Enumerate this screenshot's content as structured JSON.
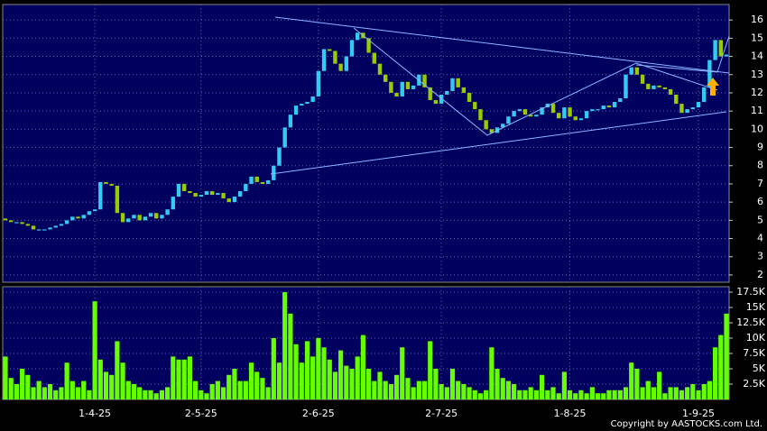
{
  "chart_data": {
    "type": "candlestick",
    "copyright": "Copyright by AASTOCKS.com Ltd.",
    "categories": [
      null,
      null,
      null,
      null,
      null,
      null,
      null,
      null,
      null,
      null,
      null,
      null,
      null,
      null,
      null,
      null,
      "1-4-25",
      null,
      null,
      null,
      null,
      null,
      null,
      null,
      null,
      null,
      null,
      null,
      null,
      null,
      null,
      null,
      null,
      null,
      null,
      "2-5-25",
      null,
      null,
      null,
      null,
      null,
      null,
      null,
      null,
      null,
      null,
      null,
      null,
      null,
      null,
      null,
      null,
      null,
      null,
      null,
      null,
      "2-6-25",
      null,
      null,
      null,
      null,
      null,
      null,
      null,
      null,
      null,
      null,
      null,
      null,
      null,
      null,
      null,
      null,
      null,
      null,
      null,
      null,
      null,
      "2-7-25",
      null,
      null,
      null,
      null,
      null,
      null,
      null,
      null,
      null,
      null,
      null,
      null,
      null,
      null,
      null,
      null,
      null,
      null,
      null,
      null,
      null,
      null,
      "1-8-25",
      null,
      null,
      null,
      null,
      null,
      null,
      null,
      null,
      null,
      null,
      null,
      null,
      null,
      null,
      null,
      null,
      null,
      null,
      null,
      null,
      null,
      null,
      "1-9-25",
      null,
      null,
      null,
      null,
      null
    ],
    "open": [
      5.1,
      5.0,
      4.9,
      4.9,
      4.8,
      4.7,
      4.5,
      4.5,
      4.5,
      4.6,
      4.7,
      4.8,
      5.0,
      5.2,
      5.1,
      5.3,
      5.5,
      5.6,
      7.1,
      7.0,
      6.9,
      5.4,
      4.9,
      5.1,
      5.3,
      5.0,
      5.2,
      5.4,
      5.1,
      5.3,
      5.6,
      6.3,
      7.0,
      6.6,
      6.5,
      6.3,
      6.4,
      6.6,
      6.4,
      6.5,
      6.2,
      6.0,
      6.3,
      6.6,
      7.0,
      7.4,
      7.1,
      7.0,
      7.2,
      8.0,
      9.0,
      10.1,
      10.8,
      11.3,
      11.4,
      11.5,
      11.8,
      13.2,
      14.4,
      14.3,
      13.6,
      13.2,
      14.0,
      14.9,
      15.3,
      15.0,
      14.2,
      13.6,
      13.0,
      12.6,
      12.0,
      11.8,
      12.6,
      12.2,
      12.4,
      13.0,
      12.3,
      11.6,
      11.4,
      11.9,
      12.1,
      12.8,
      12.3,
      12.0,
      11.5,
      11.1,
      10.5,
      10.0,
      9.8,
      10.1,
      10.3,
      10.7,
      11.0,
      11.1,
      10.8,
      10.7,
      10.8,
      11.2,
      11.4,
      10.9,
      10.6,
      11.2,
      10.7,
      10.5,
      10.6,
      11.0,
      11.1,
      11.1,
      11.3,
      11.2,
      11.5,
      11.7,
      13.0,
      13.4,
      13.0,
      12.5,
      12.2,
      12.4,
      12.3,
      12.2,
      11.9,
      11.4,
      10.9,
      11.1,
      11.2,
      11.5,
      12.3,
      13.8,
      14.9,
      14.0
    ],
    "close": [
      5.0,
      4.9,
      4.9,
      4.8,
      4.7,
      4.5,
      4.5,
      4.5,
      4.6,
      4.7,
      4.8,
      5.0,
      5.2,
      5.1,
      5.3,
      5.5,
      5.6,
      7.1,
      7.0,
      6.9,
      5.4,
      4.9,
      5.1,
      5.3,
      5.0,
      5.2,
      5.4,
      5.1,
      5.3,
      5.6,
      6.3,
      7.0,
      6.6,
      6.5,
      6.3,
      6.4,
      6.6,
      6.4,
      6.5,
      6.2,
      6.0,
      6.3,
      6.6,
      7.0,
      7.4,
      7.1,
      7.0,
      7.2,
      8.0,
      9.0,
      10.1,
      10.8,
      11.3,
      11.4,
      11.5,
      11.8,
      13.2,
      14.4,
      14.3,
      13.6,
      13.2,
      14.0,
      14.9,
      15.3,
      15.0,
      14.2,
      13.6,
      13.0,
      12.6,
      12.0,
      11.8,
      12.6,
      12.2,
      12.4,
      13.0,
      12.3,
      11.6,
      11.4,
      11.9,
      12.1,
      12.8,
      12.3,
      12.0,
      11.5,
      11.1,
      10.5,
      10.0,
      9.8,
      10.1,
      10.3,
      10.7,
      11.0,
      11.1,
      10.8,
      10.7,
      10.8,
      11.2,
      11.4,
      10.9,
      10.6,
      11.2,
      10.7,
      10.5,
      10.6,
      11.0,
      11.1,
      11.1,
      11.3,
      11.2,
      11.5,
      11.7,
      13.0,
      13.4,
      13.0,
      12.5,
      12.2,
      12.4,
      12.3,
      12.2,
      11.9,
      11.4,
      10.9,
      11.1,
      11.2,
      11.5,
      12.3,
      13.8,
      14.9,
      14.0,
      14.1
    ],
    "volume": [
      7000,
      3500,
      2500,
      5000,
      4000,
      2000,
      3000,
      2000,
      2500,
      1500,
      2000,
      6000,
      3000,
      2000,
      3000,
      1500,
      16000,
      6500,
      4500,
      4000,
      9500,
      6000,
      3000,
      2500,
      2000,
      1500,
      1500,
      1000,
      1500,
      2000,
      7000,
      6500,
      6500,
      7000,
      3000,
      1500,
      1000,
      2500,
      3000,
      2000,
      4000,
      5000,
      3000,
      3000,
      6000,
      4500,
      3500,
      2000,
      10000,
      6000,
      17500,
      14000,
      9000,
      6000,
      9500,
      7000,
      10000,
      8500,
      6500,
      4500,
      8000,
      5500,
      5000,
      7000,
      10500,
      5000,
      3000,
      4500,
      3000,
      2500,
      4000,
      8500,
      3500,
      2000,
      3000,
      3000,
      9500,
      5000,
      2500,
      2000,
      5000,
      3000,
      2500,
      2000,
      1500,
      1000,
      1500,
      8500,
      5000,
      3500,
      3000,
      2500,
      1500,
      1500,
      2000,
      1500,
      4000,
      1500,
      2000,
      1000,
      4500,
      1500,
      1000,
      1500,
      1000,
      2000,
      1000,
      1000,
      1500,
      1500,
      1500,
      2000,
      6000,
      5000,
      2000,
      3000,
      2000,
      4500,
      1000,
      2000,
      2000,
      1500,
      2000,
      2500,
      1500,
      2500,
      3000,
      8500,
      10500,
      14000
    ],
    "up_color": "#33ccee",
    "down_color": "#99cc00",
    "volume_color": "#66ff00",
    "ylim": [
      1.6,
      16.85
    ],
    "yticks": [
      2,
      3,
      4,
      5,
      6,
      7,
      8,
      9,
      10,
      11,
      12,
      13,
      14,
      15,
      16
    ],
    "volume_ylim": [
      0,
      18380
    ],
    "volume_yticks": [
      {
        "value": 2500,
        "label": "2.5K"
      },
      {
        "value": 5000,
        "label": "5K"
      },
      {
        "value": 7500,
        "label": "7.5K"
      },
      {
        "value": 10000,
        "label": "10K"
      },
      {
        "value": 12500,
        "label": "12.5K"
      },
      {
        "value": 15000,
        "label": "15K"
      },
      {
        "value": 17500,
        "label": "17.5K"
      }
    ],
    "grid": true
  }
}
